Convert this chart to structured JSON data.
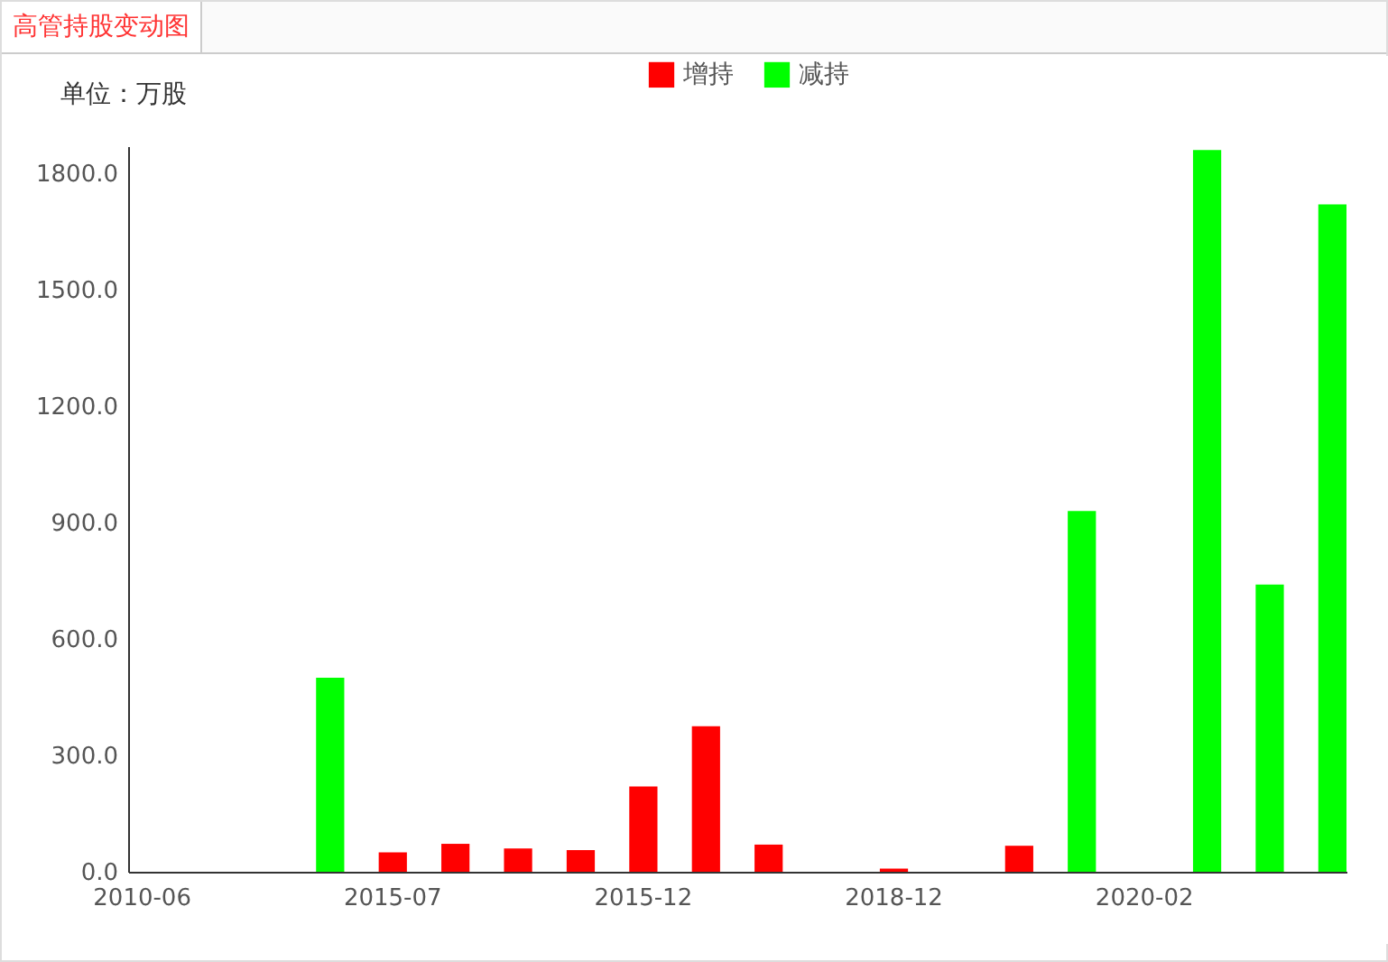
{
  "chart_data": {
    "type": "bar",
    "title": "高管持股变动图",
    "ylabel": "单位：万股",
    "categories": [
      "2010-06",
      null,
      null,
      null,
      "2015-07",
      null,
      null,
      null,
      "2015-12",
      null,
      null,
      null,
      "2018-12",
      null,
      null,
      null,
      "2020-02",
      null,
      null,
      null
    ],
    "series": [
      {
        "name": "增持",
        "color": "#ff0000",
        "values": [
          null,
          null,
          null,
          null,
          50,
          72,
          60,
          56,
          220,
          375,
          70,
          null,
          8,
          null,
          67,
          null,
          null,
          null,
          null,
          null
        ]
      },
      {
        "name": "减持",
        "color": "#00ff00",
        "values": [
          null,
          null,
          null,
          500,
          null,
          null,
          null,
          null,
          null,
          null,
          null,
          null,
          null,
          null,
          null,
          930,
          null,
          1860,
          740,
          1720
        ]
      }
    ],
    "ylim": [
      0,
      1870
    ],
    "yticks": [
      {
        "value": 0,
        "label": "0.0"
      },
      {
        "value": 300,
        "label": "300.0"
      },
      {
        "value": 600,
        "label": "600.0"
      },
      {
        "value": 900,
        "label": "900.0"
      },
      {
        "value": 1200,
        "label": "1200.0"
      },
      {
        "value": 1500,
        "label": "1500.0"
      },
      {
        "value": 1800,
        "label": "1800.0"
      }
    ],
    "grid": false,
    "legend": "top"
  }
}
